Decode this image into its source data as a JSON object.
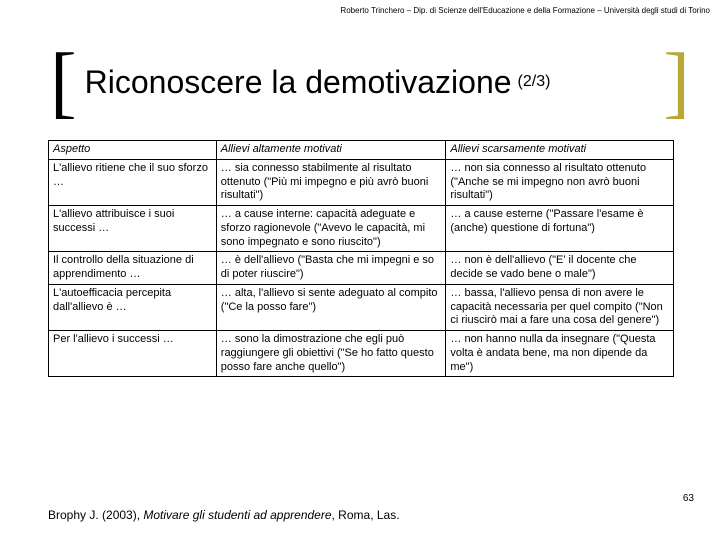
{
  "header": "Roberto Trinchero – Dip. di Scienze dell'Educazione e della Formazione – Università degli studi di Torino",
  "title": "Riconoscere la demotivazione",
  "title_sub": "(2/3)",
  "table": {
    "columns": [
      "Aspetto",
      "Allievi altamente motivati",
      "Allievi scarsamente motivati"
    ],
    "rows": [
      [
        "L'allievo ritiene che il suo sforzo …",
        "… sia connesso stabilmente al risultato ottenuto (\"Più mi impegno e più avrò buoni risultati\")",
        "… non sia connesso al risultato ottenuto (\"Anche se mi impegno non avrò buoni risultati\")"
      ],
      [
        "L'allievo attribuisce i suoi successi …",
        "… a cause interne: capacità adeguate e sforzo ragionevole (\"Avevo le capacità, mi sono impegnato e sono riuscito\")",
        "… a cause esterne (\"Passare l'esame è (anche) questione di fortuna\")"
      ],
      [
        "Il controllo della situazione di apprendimento …",
        "… è dell'allievo (\"Basta che mi impegni e so di poter riuscire\")",
        "… non è dell'allievo (\"E' il docente che decide se vado bene o male\")"
      ],
      [
        "L'autoefficacia percepita dall'allievo è …",
        "… alta, l'allievo si sente adeguato al compito (\"Ce la posso fare\")",
        "… bassa, l'allievo pensa di non avere le capacità necessaria per quel compito (\"Non ci riuscirò mai a fare una cosa del genere\")"
      ],
      [
        "Per l'allievo i successi …",
        "… sono la dimostrazione che egli può raggiungere gli obiettivi (\"Se ho fatto questo posso fare anche quello\")",
        "… non hanno nulla da insegnare (\"Questa volta è andata bene, ma non dipende da me\")"
      ]
    ]
  },
  "footer_author": "Brophy J. (2003), ",
  "footer_title": "Motivare gli studenti ad apprendere",
  "footer_rest": ", Roma, Las.",
  "page_num": "63"
}
